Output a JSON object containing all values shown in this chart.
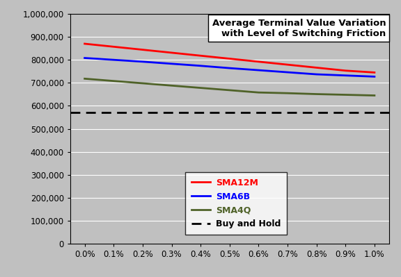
{
  "x_values": [
    0.0,
    0.001,
    0.002,
    0.003,
    0.004,
    0.005,
    0.006,
    0.007,
    0.008,
    0.009,
    0.01
  ],
  "x_labels": [
    "0.0%",
    "0.1%",
    "0.2%",
    "0.3%",
    "0.4%",
    "0.5%",
    "0.6%",
    "0.7%",
    "0.8%",
    "0.9%",
    "1.0%"
  ],
  "SMA12M": [
    870000,
    857000,
    844000,
    831000,
    818000,
    805000,
    792000,
    779000,
    766000,
    753000,
    745000
  ],
  "SMA6B": [
    808000,
    800000,
    792000,
    783000,
    774000,
    764000,
    755000,
    746000,
    737000,
    732000,
    727000
  ],
  "SMA4Q": [
    718000,
    708000,
    698000,
    688000,
    678000,
    668000,
    658000,
    655000,
    651000,
    648000,
    645000
  ],
  "BuyHold": 572000,
  "SMA12M_color": "#FF0000",
  "SMA6B_color": "#0000FF",
  "SMA4Q_color": "#4F6228",
  "BuyHold_color": "#000000",
  "fig_bg_color": "#C0C0C0",
  "plot_bg_color": "#C0C0C0",
  "ylim": [
    0,
    1000000
  ],
  "ytick_step": 100000,
  "title_line1": "Average Terminal Value Variation",
  "title_line2": "with Level of Switching Friction",
  "legend_labels": [
    "SMA12M",
    "SMA6B",
    "SMA4Q",
    "Buy and Hold"
  ],
  "legend_label_colors": [
    "#FF0000",
    "#0000FF",
    "#4F6228",
    "#000000"
  ],
  "linewidth": 2.0,
  "title_fontsize": 9.5,
  "axis_fontsize": 8.5,
  "legend_fontsize": 9
}
